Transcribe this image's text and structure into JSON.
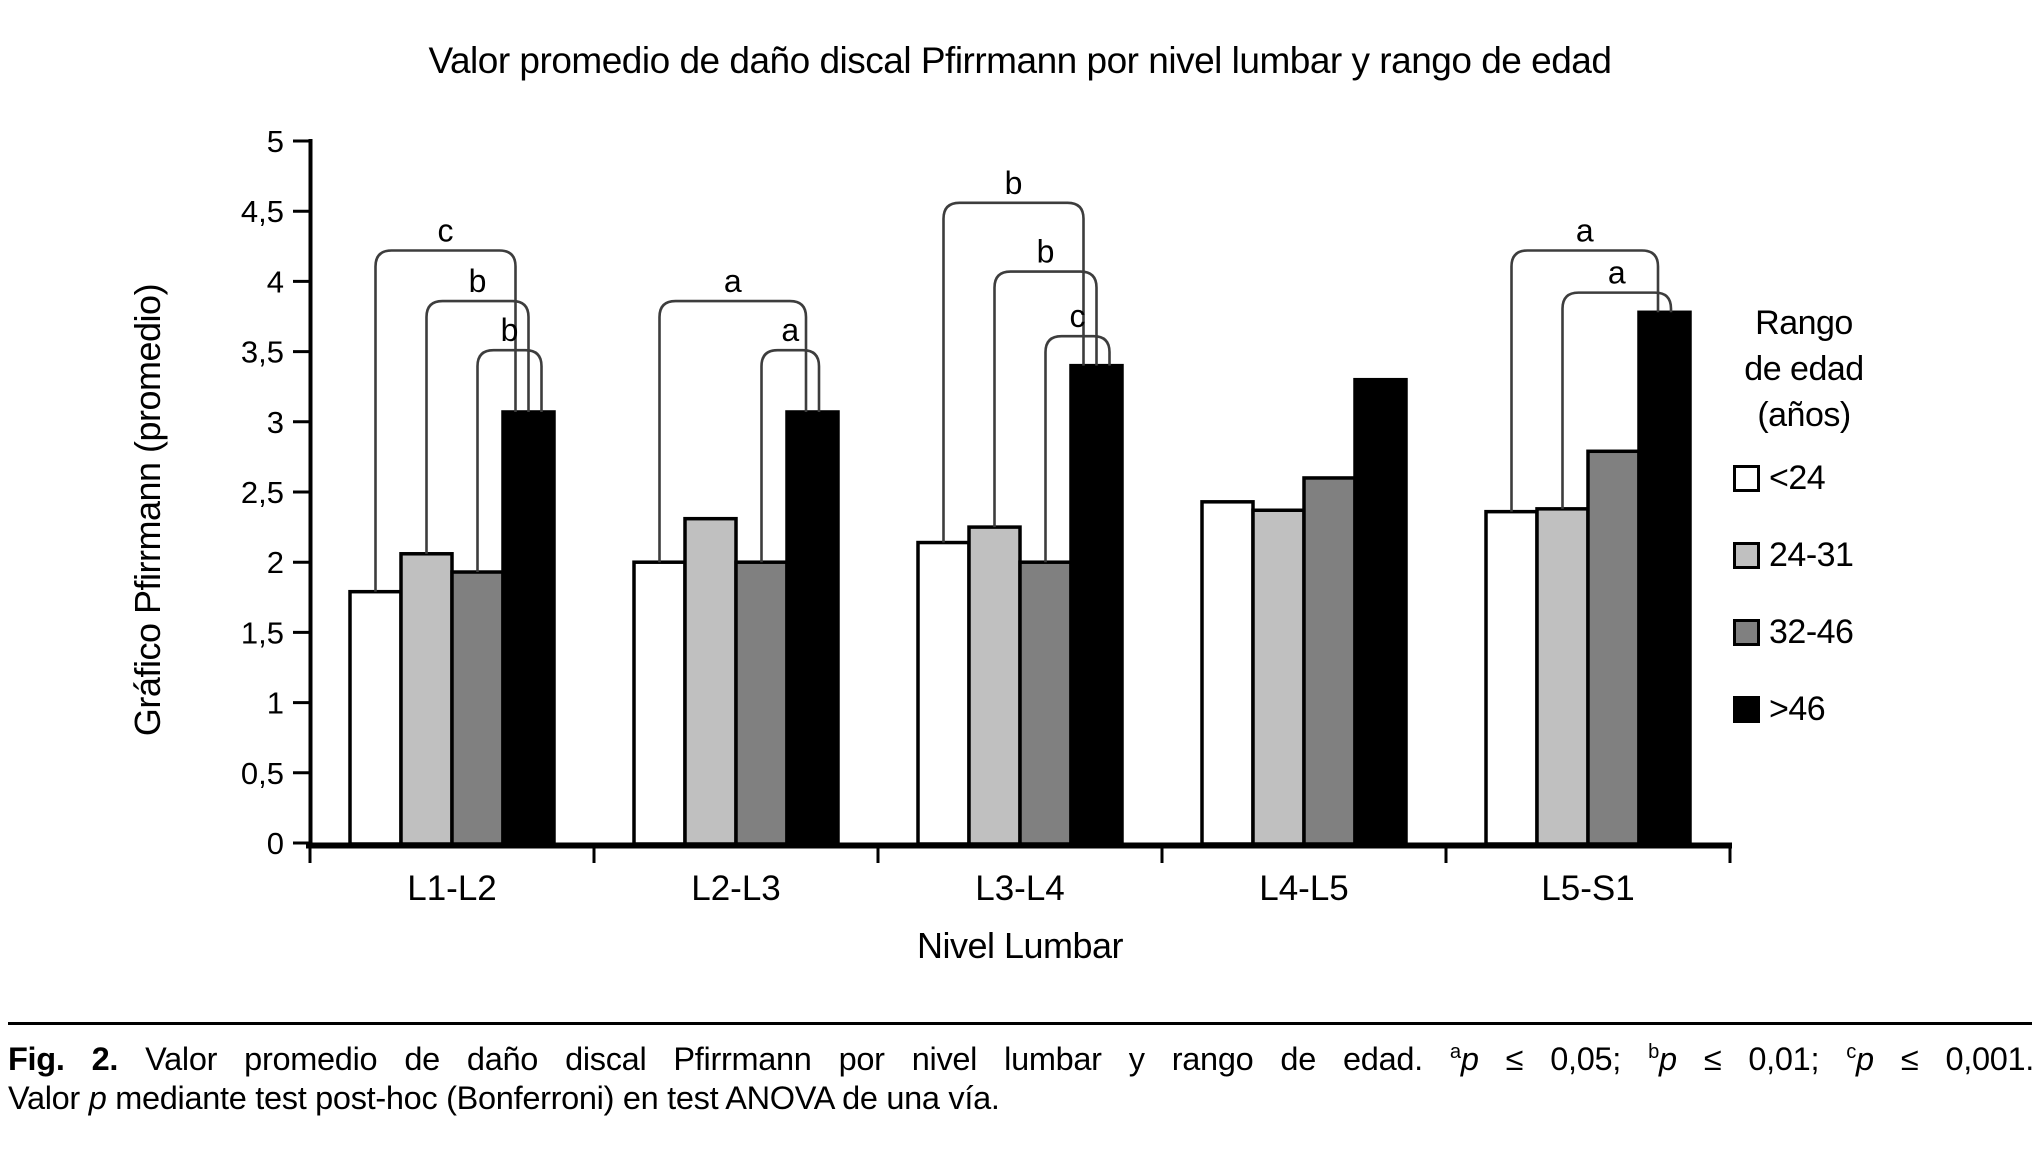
{
  "figure_title": "Valor promedio de daño discal Pfirrmann por nivel lumbar y rango de edad",
  "chart_data": {
    "type": "bar",
    "title": "Valor promedio de daño discal Pfirrmann por nivel lumbar y rango de edad",
    "xlabel": "Nivel Lumbar",
    "ylabel": "Gráfico Pfirrmann (promedio)",
    "ylim": [
      0,
      5
    ],
    "y_tick_step": 0.5,
    "y_tick_labels": [
      "0",
      "0,5",
      "1",
      "1,5",
      "2",
      "2,5",
      "3",
      "3,5",
      "4",
      "4,5",
      "5"
    ],
    "grid": false,
    "categories": [
      "L1-L2",
      "L2-L3",
      "L3-L4",
      "L4-L5",
      "L5-S1"
    ],
    "series": [
      {
        "name": "<24",
        "color": "#ffffff",
        "values": [
          1.79,
          2.0,
          2.14,
          2.43,
          2.36
        ]
      },
      {
        "name": "24-31",
        "color": "#c0c0c0",
        "values": [
          2.06,
          2.31,
          2.25,
          2.37,
          2.38
        ]
      },
      {
        "name": "32-46",
        "color": "#808080",
        "values": [
          1.93,
          2.0,
          2.0,
          2.6,
          2.79
        ]
      },
      {
        "name": ">46",
        "color": "#000000",
        "values": [
          3.07,
          3.07,
          3.4,
          3.3,
          3.78
        ]
      }
    ],
    "legend": {
      "position": "right",
      "title": "Rango de edad (años)",
      "title_lines": [
        "Rango",
        "de edad",
        "(años)"
      ]
    },
    "significance_brackets": [
      {
        "group": "L1-L2",
        "from_series": "<24",
        "to_series": ">46",
        "label": "c",
        "height": 4.22
      },
      {
        "group": "L1-L2",
        "from_series": "24-31",
        "to_series": ">46",
        "label": "b",
        "height": 3.86
      },
      {
        "group": "L1-L2",
        "from_series": "32-46",
        "to_series": ">46",
        "label": "b",
        "height": 3.51
      },
      {
        "group": "L2-L3",
        "from_series": "<24",
        "to_series": ">46",
        "label": "a",
        "height": 3.86
      },
      {
        "group": "L2-L3",
        "from_series": "32-46",
        "to_series": ">46",
        "label": "a",
        "height": 3.51
      },
      {
        "group": "L3-L4",
        "from_series": "<24",
        "to_series": ">46",
        "label": "b",
        "height": 4.56
      },
      {
        "group": "L3-L4",
        "from_series": "24-31",
        "to_series": ">46",
        "label": "b",
        "height": 4.07
      },
      {
        "group": "L3-L4",
        "from_series": "32-46",
        "to_series": ">46",
        "label": "c",
        "height": 3.61
      },
      {
        "group": "L5-S1",
        "from_series": "<24",
        "to_series": ">46",
        "label": "a",
        "height": 4.22
      },
      {
        "group": "L5-S1",
        "from_series": "24-31",
        "to_series": ">46",
        "label": "a",
        "height": 3.92
      }
    ]
  },
  "caption": {
    "lines": [
      [
        {
          "text": "Fig. 2.",
          "bold": true
        },
        {
          "text": " Valor promedio de daño discal Pfirrmann por nivel lumbar y rango de edad. "
        },
        {
          "text": "a",
          "sup": true
        },
        {
          "text": "p",
          "italic": true
        },
        {
          "text": " ≤ 0,05; "
        },
        {
          "text": "b",
          "sup": true
        },
        {
          "text": "p",
          "italic": true
        },
        {
          "text": " ≤ 0,01; "
        },
        {
          "text": "c",
          "sup": true
        },
        {
          "text": "p",
          "italic": true
        },
        {
          "text": " ≤ 0,001."
        }
      ],
      [
        {
          "text": "Valor "
        },
        {
          "text": "p",
          "italic": true
        },
        {
          "text": " mediante test post-hoc (Bonferroni) en test ANOVA de una vía."
        }
      ]
    ]
  }
}
